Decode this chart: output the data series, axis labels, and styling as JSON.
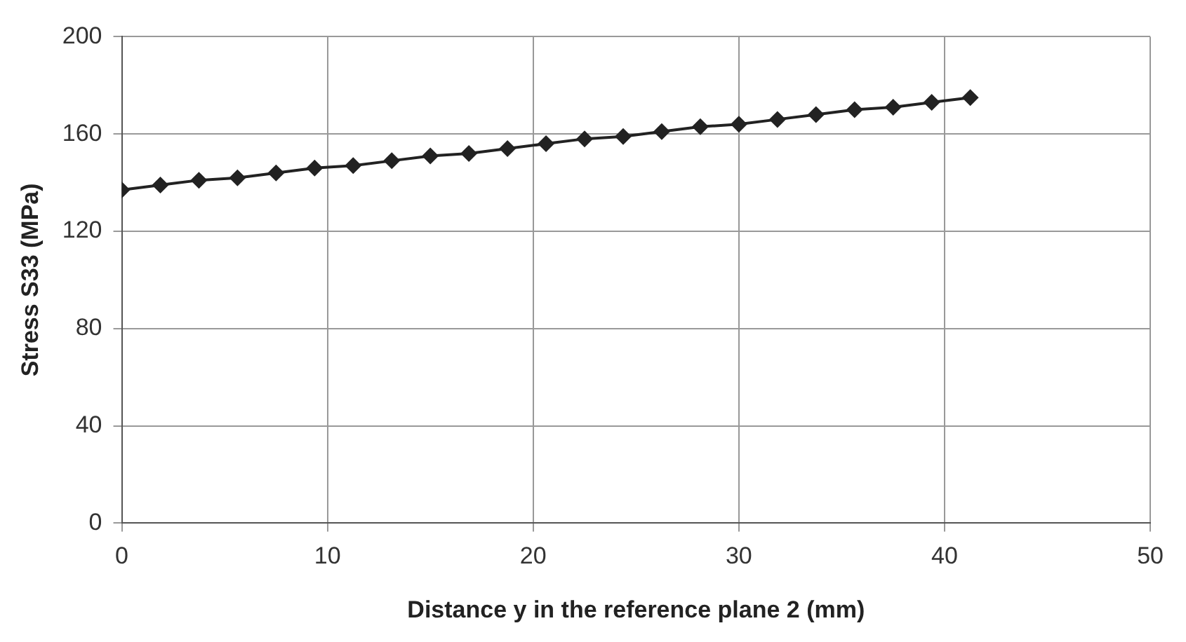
{
  "chart_data": {
    "type": "line",
    "xlabel": "Distance y in the reference plane 2 (mm)",
    "ylabel": "Stress S33 (MPa)",
    "x": [
      0,
      1.875,
      3.75,
      5.625,
      7.5,
      9.375,
      11.25,
      13.125,
      15,
      16.875,
      18.75,
      20.625,
      22.5,
      24.375,
      26.25,
      28.125,
      30,
      31.875,
      33.75,
      35.625,
      37.5,
      39.375,
      41.25
    ],
    "series": [
      {
        "color": "#222222",
        "values": [
          137,
          139,
          141,
          142,
          144,
          146,
          147,
          149,
          151,
          152,
          154,
          156,
          158,
          159,
          161,
          163,
          164,
          166,
          168,
          170,
          171,
          173,
          175
        ]
      }
    ],
    "xlim": [
      0,
      50
    ],
    "xticks": [
      0,
      10,
      20,
      30,
      40,
      50
    ],
    "ylim": [
      0,
      200
    ],
    "yticks": [
      0,
      40,
      80,
      120,
      160,
      200
    ],
    "grid": true,
    "legend": false,
    "marker": "diamond",
    "line_style": "solid"
  }
}
